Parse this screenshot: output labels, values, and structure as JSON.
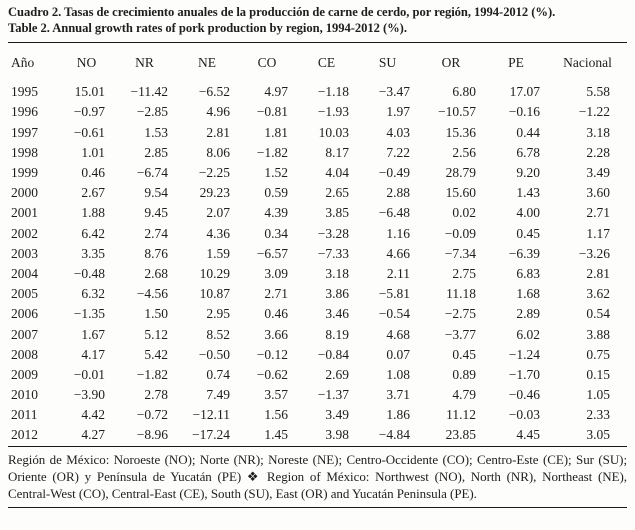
{
  "title": {
    "line1_es": "Cuadro 2. Tasas de crecimiento anuales de la producción de carne de cerdo, por región, 1994-2012 (%).",
    "line2_en": "Table 2. Annual growth rates of pork production by region, 1994-2012 (%)."
  },
  "table": {
    "columns": [
      "Año",
      "NO",
      "NR",
      "NE",
      "CO",
      "CE",
      "SU",
      "OR",
      "PE",
      "Nacional"
    ],
    "rows": [
      [
        "1995",
        "15.01",
        "−11.42",
        "−6.52",
        "4.97",
        "−1.18",
        "−3.47",
        "6.80",
        "17.07",
        "5.58"
      ],
      [
        "1996",
        "−0.97",
        "−2.85",
        "4.96",
        "−0.81",
        "−1.93",
        "1.97",
        "−10.57",
        "−0.16",
        "−1.22"
      ],
      [
        "1997",
        "−0.61",
        "1.53",
        "2.81",
        "1.81",
        "10.03",
        "4.03",
        "15.36",
        "0.44",
        "3.18"
      ],
      [
        "1998",
        "1.01",
        "2.85",
        "8.06",
        "−1.82",
        "8.17",
        "7.22",
        "2.56",
        "6.78",
        "2.28"
      ],
      [
        "1999",
        "0.46",
        "−6.74",
        "−2.25",
        "1.52",
        "4.04",
        "−0.49",
        "28.79",
        "9.20",
        "3.49"
      ],
      [
        "2000",
        "2.67",
        "9.54",
        "29.23",
        "0.59",
        "2.65",
        "2.88",
        "15.60",
        "1.43",
        "3.60"
      ],
      [
        "2001",
        "1.88",
        "9.45",
        "2.07",
        "4.39",
        "3.85",
        "−6.48",
        "0.02",
        "4.00",
        "2.71"
      ],
      [
        "2002",
        "6.42",
        "2.74",
        "4.36",
        "0.34",
        "−3.28",
        "1.16",
        "−0.09",
        "0.45",
        "1.17"
      ],
      [
        "2003",
        "3.35",
        "8.76",
        "1.59",
        "−6.57",
        "−7.33",
        "4.66",
        "−7.34",
        "−6.39",
        "−3.26"
      ],
      [
        "2004",
        "−0.48",
        "2.68",
        "10.29",
        "3.09",
        "3.18",
        "2.11",
        "2.75",
        "6.83",
        "2.81"
      ],
      [
        "2005",
        "6.32",
        "−4.56",
        "10.87",
        "2.71",
        "3.86",
        "−5.81",
        "11.18",
        "1.68",
        "3.62"
      ],
      [
        "2006",
        "−1.35",
        "1.50",
        "2.95",
        "0.46",
        "3.46",
        "−0.54",
        "−2.75",
        "2.89",
        "0.54"
      ],
      [
        "2007",
        "1.67",
        "5.12",
        "8.52",
        "3.66",
        "8.19",
        "4.68",
        "−3.77",
        "6.02",
        "3.88"
      ],
      [
        "2008",
        "4.17",
        "5.42",
        "−0.50",
        "−0.12",
        "−0.84",
        "0.07",
        "0.45",
        "−1.24",
        "0.75"
      ],
      [
        "2009",
        "−0.01",
        "−1.82",
        "0.74",
        "−0.62",
        "2.69",
        "1.08",
        "0.89",
        "−1.70",
        "0.15"
      ],
      [
        "2010",
        "−3.90",
        "2.78",
        "7.49",
        "3.57",
        "−1.37",
        "3.71",
        "4.79",
        "−0.46",
        "1.05"
      ],
      [
        "2011",
        "4.42",
        "−0.72",
        "−12.11",
        "1.56",
        "3.49",
        "1.86",
        "11.12",
        "−0.03",
        "2.33"
      ],
      [
        "2012",
        "4.27",
        "−8.96",
        "−17.24",
        "1.45",
        "3.98",
        "−4.84",
        "23.85",
        "4.45",
        "3.05"
      ]
    ]
  },
  "footnote": "Región de México: Noroeste (NO); Norte (NR); Noreste (NE); Centro-Occidente (CO); Centro-Este (CE); Sur (SU); Oriente (OR) y Península de Yucatán (PE) ❖ Region of México: Northwest (NO), North (NR), Northeast (NE), Central-West (CO), Central-East (CE), South (SU), East (OR) and Yucatán Peninsula (PE).",
  "chart_data": {
    "type": "table",
    "title": "Tasas de crecimiento anuales de la producción de carne de cerdo, por región, 1994-2012 (%) / Annual growth rates of pork production by region, 1994-2012 (%)",
    "categories": [
      "1995",
      "1996",
      "1997",
      "1998",
      "1999",
      "2000",
      "2001",
      "2002",
      "2003",
      "2004",
      "2005",
      "2006",
      "2007",
      "2008",
      "2009",
      "2010",
      "2011",
      "2012"
    ],
    "series": [
      {
        "name": "NO",
        "values": [
          15.01,
          -0.97,
          -0.61,
          1.01,
          0.46,
          2.67,
          1.88,
          6.42,
          3.35,
          -0.48,
          6.32,
          -1.35,
          1.67,
          4.17,
          -0.01,
          -3.9,
          4.42,
          4.27
        ]
      },
      {
        "name": "NR",
        "values": [
          -11.42,
          -2.85,
          1.53,
          2.85,
          -6.74,
          9.54,
          9.45,
          2.74,
          8.76,
          2.68,
          -4.56,
          1.5,
          5.12,
          5.42,
          -1.82,
          2.78,
          -0.72,
          -8.96
        ]
      },
      {
        "name": "NE",
        "values": [
          -6.52,
          4.96,
          2.81,
          8.06,
          -2.25,
          29.23,
          2.07,
          4.36,
          1.59,
          10.29,
          10.87,
          2.95,
          8.52,
          -0.5,
          0.74,
          7.49,
          -12.11,
          -17.24
        ]
      },
      {
        "name": "CO",
        "values": [
          4.97,
          -0.81,
          1.81,
          -1.82,
          1.52,
          0.59,
          4.39,
          0.34,
          -6.57,
          3.09,
          2.71,
          0.46,
          3.66,
          -0.12,
          -0.62,
          3.57,
          1.56,
          1.45
        ]
      },
      {
        "name": "CE",
        "values": [
          -1.18,
          -1.93,
          10.03,
          8.17,
          4.04,
          2.65,
          3.85,
          -3.28,
          -7.33,
          3.18,
          3.86,
          3.46,
          8.19,
          -0.84,
          2.69,
          -1.37,
          3.49,
          3.98
        ]
      },
      {
        "name": "SU",
        "values": [
          -3.47,
          1.97,
          4.03,
          7.22,
          -0.49,
          2.88,
          -6.48,
          1.16,
          4.66,
          2.11,
          -5.81,
          -0.54,
          4.68,
          0.07,
          1.08,
          3.71,
          1.86,
          -4.84
        ]
      },
      {
        "name": "OR",
        "values": [
          6.8,
          -10.57,
          15.36,
          2.56,
          28.79,
          15.6,
          0.02,
          -0.09,
          -7.34,
          2.75,
          11.18,
          -2.75,
          -3.77,
          0.45,
          0.89,
          4.79,
          11.12,
          23.85
        ]
      },
      {
        "name": "PE",
        "values": [
          17.07,
          -0.16,
          0.44,
          6.78,
          9.2,
          1.43,
          4.0,
          0.45,
          -6.39,
          6.83,
          1.68,
          2.89,
          6.02,
          -1.24,
          -1.7,
          -0.46,
          -0.03,
          4.45
        ]
      },
      {
        "name": "Nacional",
        "values": [
          5.58,
          -1.22,
          3.18,
          2.28,
          3.49,
          3.6,
          2.71,
          1.17,
          -3.26,
          2.81,
          3.62,
          0.54,
          3.88,
          0.75,
          0.15,
          1.05,
          2.33,
          3.05
        ]
      }
    ]
  }
}
